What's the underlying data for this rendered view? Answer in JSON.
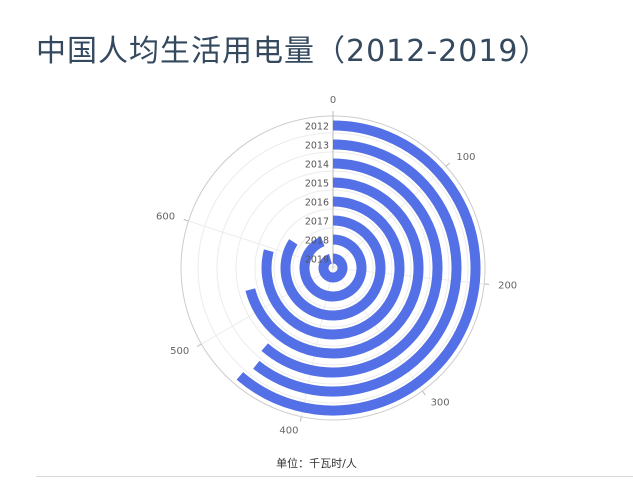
{
  "page": {
    "title": "中国人均生活用电量（2012-2019）",
    "unit_note": "单位：千瓦时/人"
  },
  "chart_data": {
    "type": "polar-bar",
    "title": "中国人均生活用电量（2012-2019）",
    "unit": "千瓦时/人",
    "categories": [
      "2012",
      "2013",
      "2014",
      "2015",
      "2016",
      "2017",
      "2018",
      "2019"
    ],
    "values": [
      460,
      455,
      460,
      532,
      594,
      632,
      706,
      717
    ],
    "angle_axis": {
      "min": 0,
      "max": 750,
      "ticks": [
        0,
        100,
        200,
        300,
        400,
        500,
        600
      ]
    },
    "color": "#5470e6",
    "grid": true
  }
}
